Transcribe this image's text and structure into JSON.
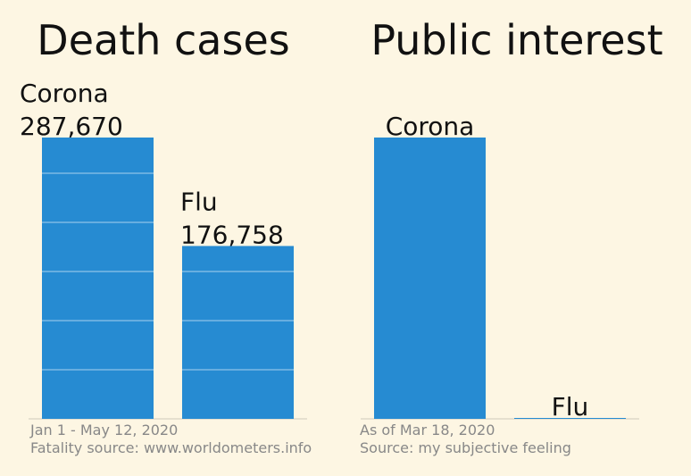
{
  "chart_data": [
    {
      "type": "bar",
      "title": "Death cases",
      "categories": [
        "Corona",
        "Flu"
      ],
      "values": [
        287670,
        176758
      ],
      "value_labels": [
        "287,670",
        "176,758"
      ],
      "ylim": [
        0,
        287670
      ],
      "grid": true,
      "notes": [
        "Jan 1 - May 12, 2020",
        "Fatality source: www.worldometers.info"
      ],
      "color": "#268bd2"
    },
    {
      "type": "bar",
      "title": "Public interest",
      "categories": [
        "Corona",
        "Flu"
      ],
      "values": [
        100,
        0.3
      ],
      "ylim": [
        0,
        100
      ],
      "grid": false,
      "notes": [
        "As of Mar 18, 2020",
        "Source: my subjective feeling"
      ],
      "color": "#268bd2"
    }
  ]
}
